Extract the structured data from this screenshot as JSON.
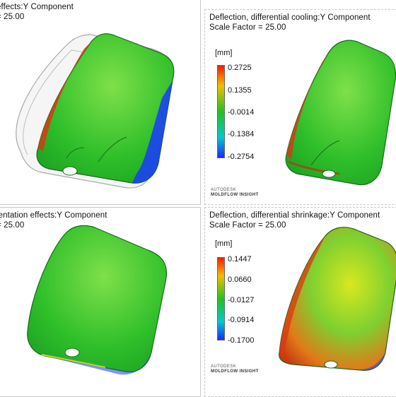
{
  "panels": {
    "top_left": {
      "title": "effects:Y Component",
      "scale": "= 25.00"
    },
    "top_right": {
      "title": "Deflection, differential cooling:Y Component",
      "scale": "Scale Factor = 25.00",
      "unit": "[mm]",
      "legend_values": [
        "0.2725",
        "0.1355",
        "-0.0014",
        "-0.1384",
        "-0.2754"
      ],
      "brand": "AUTODESK",
      "product": "MOLDFLOW INSIGHT"
    },
    "bottom_left": {
      "title": "ientation effects:Y Component",
      "scale": "= 25.00"
    },
    "bottom_right": {
      "title": "Deflection, differential shrinkage:Y Component",
      "scale": "Scale Factor = 25.00",
      "unit": "[mm]",
      "legend_values": [
        "0.1447",
        "0.0660",
        "-0.0127",
        "-0.0914",
        "-0.1700"
      ],
      "brand": "AUTODESK",
      "product": "MOLDFLOW INSIGHT"
    }
  },
  "colors": {
    "max": "#ff1a00",
    "high": "#e6c800",
    "mid": "#22c21e",
    "low": "#00c8d0",
    "min": "#1a2aff"
  }
}
